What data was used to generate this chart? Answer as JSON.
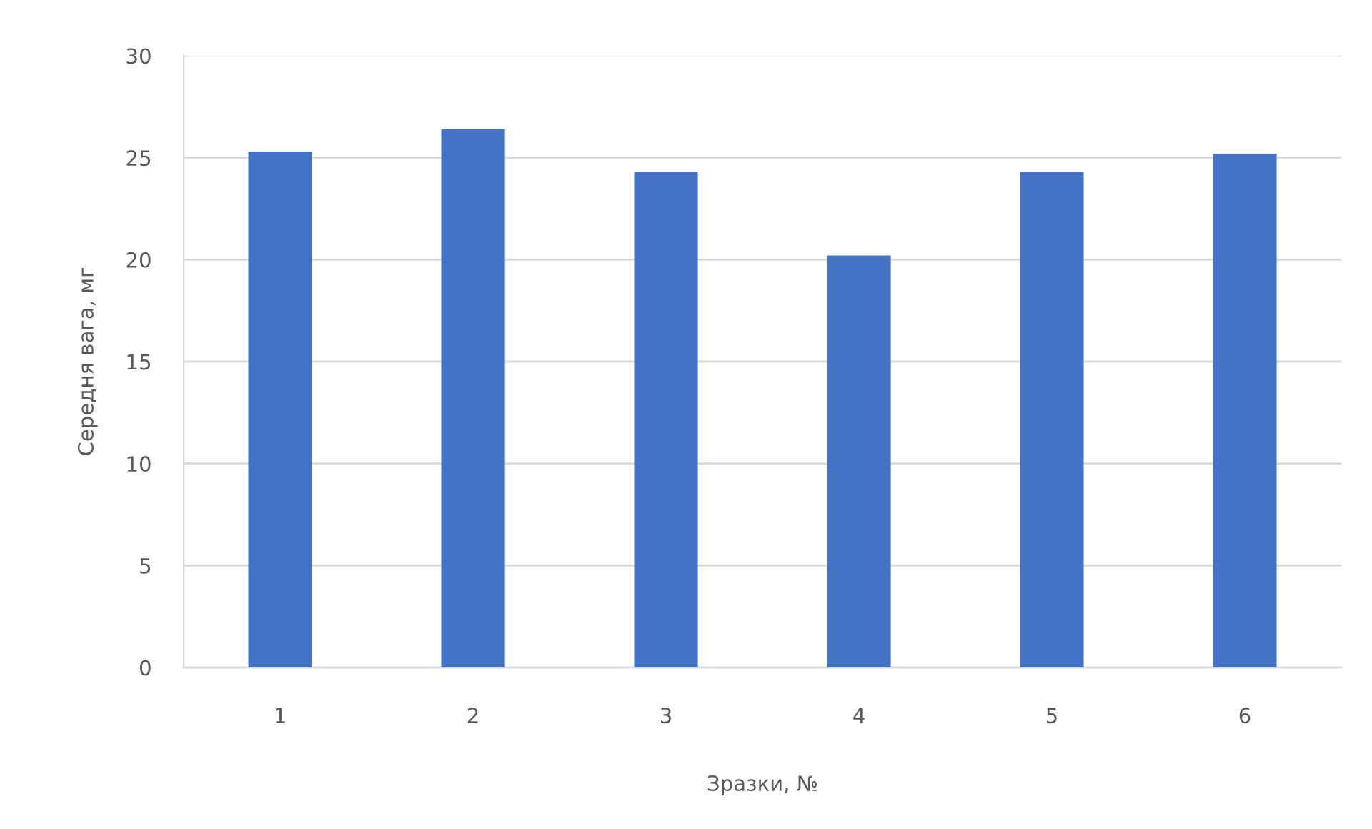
{
  "chart_data": {
    "type": "bar",
    "xlabel": "Зразки, №",
    "ylabel": "Середня вага, мг",
    "categories": [
      "1",
      "2",
      "3",
      "4",
      "5",
      "6"
    ],
    "values": [
      25.3,
      26.4,
      24.3,
      20.2,
      24.3,
      25.2
    ],
    "color": "#4472c4",
    "ylim": [
      0,
      30
    ],
    "yticks": [
      0,
      5,
      10,
      15,
      20,
      25,
      30
    ],
    "grid": "y"
  }
}
